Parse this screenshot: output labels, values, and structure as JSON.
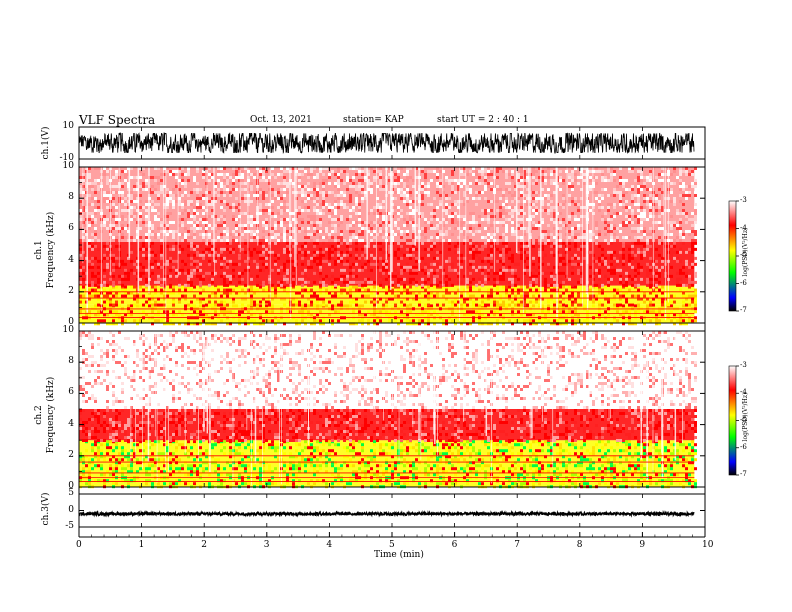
{
  "header": {
    "title": "VLF Spectra",
    "date": "Oct. 13, 2021",
    "station": "station= KAP",
    "start": "start UT =  2 : 40 : 1"
  },
  "chart_data": [
    {
      "type": "line",
      "name": "ch1-waveform",
      "ylabel": "ch.1(V)",
      "ylim": [
        -10,
        10
      ],
      "yticks": [
        "10",
        "-10"
      ],
      "x_range_min": [
        0,
        9.83
      ],
      "amplitude_v": [
        -6,
        6
      ]
    },
    {
      "type": "heatmap",
      "name": "ch1-spectrogram",
      "ylabel": "ch.1\nFrequency (kHz)",
      "ylim": [
        0,
        10
      ],
      "yticks": [
        "0",
        "2",
        "4",
        "6",
        "8",
        "10"
      ],
      "x_range_min": [
        0,
        9.83
      ],
      "colorbar": {
        "label": "log(PSD)(V²/Hz)",
        "min": -7,
        "max": -3,
        "ticks": [
          "-3",
          "-4",
          "-5",
          "-6",
          "-7"
        ]
      },
      "bands": [
        {
          "f_khz": [
            0,
            1.2
          ],
          "color": "yellow"
        },
        {
          "f_khz": [
            1.2,
            2.4
          ],
          "color": "yellow/red"
        },
        {
          "f_khz": [
            2.4,
            5.2
          ],
          "color": "red"
        },
        {
          "f_khz": [
            5.2,
            10
          ],
          "color": "light red / white"
        }
      ]
    },
    {
      "type": "heatmap",
      "name": "ch2-spectrogram",
      "ylabel": "ch.2\nFrequency (kHz)",
      "ylim": [
        0,
        10
      ],
      "yticks": [
        "0",
        "2",
        "4",
        "6",
        "8",
        "10"
      ],
      "x_range_min": [
        0,
        9.83
      ],
      "colorbar": {
        "label": "log(PSD)(V²/Hz)",
        "min": -7,
        "max": -3,
        "ticks": [
          "-3",
          "-4",
          "-5",
          "-6",
          "-7"
        ]
      },
      "bands": [
        {
          "f_khz": [
            0,
            3.0
          ],
          "color": "yellow/green"
        },
        {
          "f_khz": [
            3.0,
            5.0
          ],
          "color": "red"
        },
        {
          "f_khz": [
            5.0,
            10
          ],
          "color": "white / light red"
        }
      ]
    },
    {
      "type": "line",
      "name": "ch3-waveform",
      "ylabel": "ch.3(V)",
      "ylim": [
        -5,
        5
      ],
      "yticks": [
        "5",
        "0",
        "-5"
      ],
      "x_range_min": [
        0,
        9.83
      ],
      "amplitude_v": [
        -1.5,
        -0.5
      ]
    }
  ],
  "xaxis": {
    "label": "Time (min)",
    "xlim": [
      0,
      10
    ],
    "ticks": [
      "0",
      "1",
      "2",
      "3",
      "4",
      "5",
      "6",
      "7",
      "8",
      "9",
      "10"
    ]
  },
  "colors": {
    "red": "#ff0000",
    "yellow": "#ffff00",
    "green": "#00ff00",
    "blue": "#0000ff",
    "white": "#ffffff"
  }
}
